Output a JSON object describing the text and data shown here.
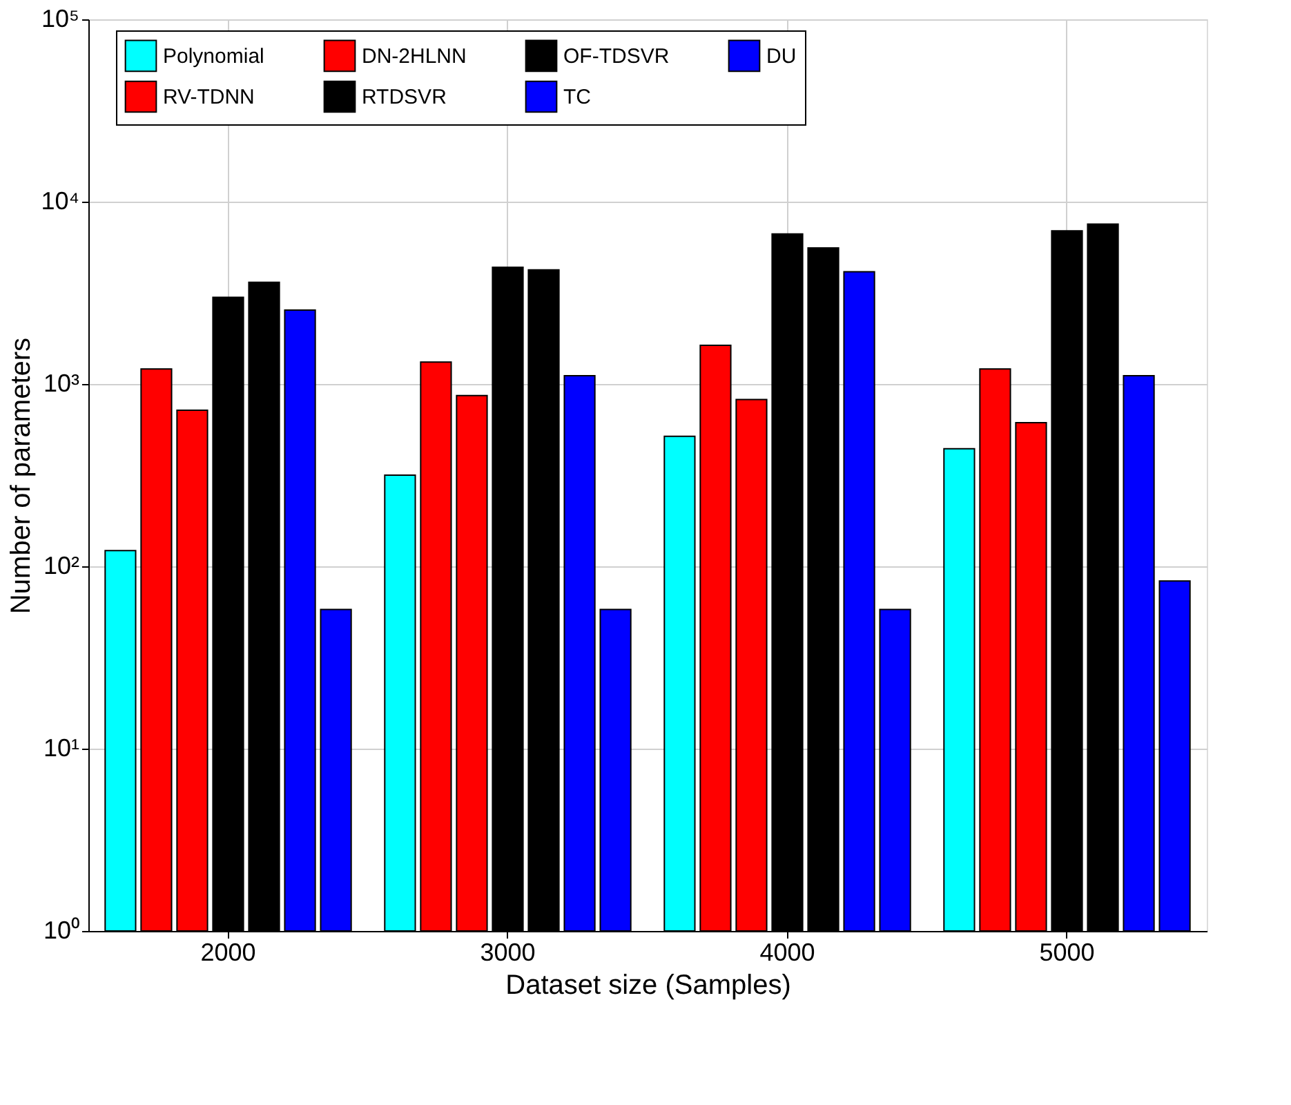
{
  "chart_data": {
    "type": "bar",
    "xlabel": "Dataset size (Samples)",
    "ylabel": "Number of parameters",
    "categories": [
      "2000",
      "3000",
      "4000",
      "5000"
    ],
    "series": [
      {
        "name": "Polynomial",
        "color": "#00ffff",
        "values": [
          122,
          316,
          517,
          441
        ]
      },
      {
        "name": "RV-TDNN",
        "color": "#ff0000",
        "values": [
          1210,
          1320,
          1630,
          1210
        ]
      },
      {
        "name": "DN-2HLNN",
        "color": "#ff0000",
        "values": [
          718,
          865,
          822,
          613
        ]
      },
      {
        "name": "RTDSVR",
        "color": "#000000",
        "values": [
          2990,
          4370,
          6650,
          6920
        ]
      },
      {
        "name": "OF-TDSVR",
        "color": "#000000",
        "values": [
          3610,
          4230,
          5580,
          7530
        ]
      },
      {
        "name": "TC",
        "color": "#0000ff",
        "values": [
          2540,
          1110,
          4130,
          1110
        ]
      },
      {
        "name": "DU",
        "color": "#0000ff",
        "values": [
          58,
          58,
          58,
          83
        ]
      }
    ],
    "log": true,
    "ylim": [
      1,
      100000
    ],
    "yticks": [
      {
        "value": 1,
        "label": "10⁰"
      },
      {
        "value": 10,
        "label": "10¹"
      },
      {
        "value": 100,
        "label": "10²"
      },
      {
        "value": 1000,
        "label": "10³"
      },
      {
        "value": 10000,
        "label": "10⁴"
      },
      {
        "value": 100000,
        "label": "10⁵"
      }
    ],
    "grid": true,
    "legend": "top"
  }
}
